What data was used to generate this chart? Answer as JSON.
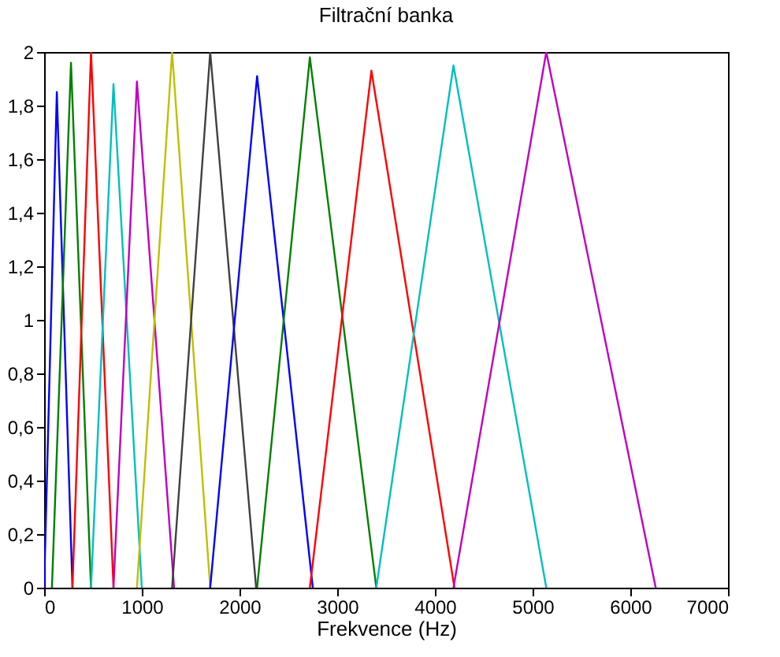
{
  "chart_data": {
    "type": "line",
    "title": "Filtrační banka",
    "xlabel": "Frekvence (Hz)",
    "xlim": [
      0,
      7000
    ],
    "xticks": [
      0,
      1000,
      2000,
      3000,
      4000,
      5000,
      6000,
      7000
    ],
    "ylim": [
      0,
      2
    ],
    "yticks": [
      0,
      {
        "value": 0.2,
        "label": "0,2"
      },
      {
        "value": 0.4,
        "label": "0,4"
      },
      {
        "value": 0.6,
        "label": "0,6"
      },
      {
        "value": 0.8,
        "label": "0,8"
      },
      1,
      {
        "value": 1.2,
        "label": "1,2"
      },
      {
        "value": 1.4,
        "label": "1,4"
      },
      {
        "value": 1.6,
        "label": "1,6"
      },
      {
        "value": 1.8,
        "label": "1,8"
      },
      2
    ],
    "grid": false,
    "legend": false,
    "line_style": "solid",
    "series": [
      {
        "color": "#0000ff",
        "x": [
          0,
          130,
          290
        ],
        "values": [
          0,
          1.85,
          0
        ]
      },
      {
        "color": "#008000",
        "x": [
          80,
          275,
          480
        ],
        "values": [
          0,
          1.96,
          0
        ]
      },
      {
        "color": "#ff0000",
        "x": [
          290,
          480,
          710
        ],
        "values": [
          0,
          2,
          0
        ]
      },
      {
        "color": "#00bfbf",
        "x": [
          480,
          710,
          1000
        ],
        "values": [
          0,
          1.88,
          0
        ]
      },
      {
        "color": "#bf00bf",
        "x": [
          710,
          950,
          1330
        ],
        "values": [
          0,
          1.89,
          0
        ]
      },
      {
        "color": "#bfbf00",
        "x": [
          950,
          1310,
          1700
        ],
        "values": [
          0,
          2,
          0
        ]
      },
      {
        "color": "#404040",
        "x": [
          1310,
          1700,
          2170
        ],
        "values": [
          0,
          2,
          0
        ]
      },
      {
        "color": "#0000ff",
        "x": [
          1700,
          2180,
          2750
        ],
        "values": [
          0,
          1.91,
          0
        ]
      },
      {
        "color": "#008000",
        "x": [
          2180,
          2720,
          3400
        ],
        "values": [
          0,
          1.98,
          0
        ]
      },
      {
        "color": "#ff0000",
        "x": [
          2720,
          3350,
          4200
        ],
        "values": [
          0,
          1.93,
          0
        ]
      },
      {
        "color": "#00bfbf",
        "x": [
          3400,
          4190,
          5140
        ],
        "values": [
          0,
          1.95,
          0
        ]
      },
      {
        "color": "#bf00bf",
        "x": [
          4190,
          5140,
          6260
        ],
        "values": [
          0,
          2,
          0
        ]
      }
    ]
  }
}
